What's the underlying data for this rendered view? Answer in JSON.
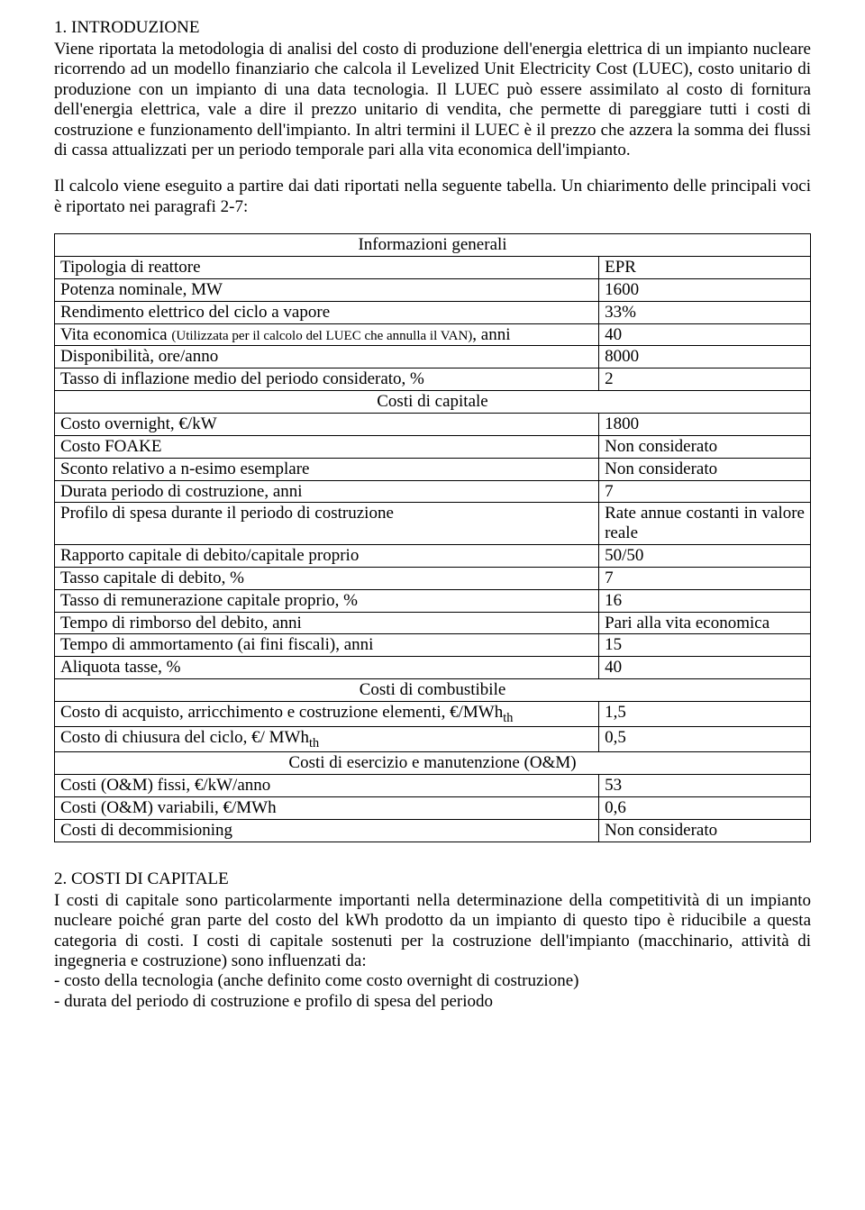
{
  "section1": {
    "heading": "1. INTRODUZIONE",
    "para1": "Viene riportata la metodologia di analisi del costo di produzione dell'energia elettrica di un impianto nucleare ricorrendo ad un modello finanziario che calcola il Levelized Unit Electricity Cost (LUEC), costo unitario di produzione con un impianto di una data tecnologia. Il LUEC può essere assimilato al costo di fornitura dell'energia elettrica, vale a dire il prezzo unitario di vendita, che permette di pareggiare tutti i costi di costruzione e funzionamento dell'impianto. In altri termini il LUEC è il prezzo che azzera la somma dei flussi di cassa attualizzati per un periodo temporale pari alla vita economica dell'impianto.",
    "para2": "Il calcolo viene eseguito a partire dai dati riportati nella seguente tabella. Un chiarimento delle principali voci è riportato nei paragrafi 2-7:"
  },
  "table": {
    "headers": {
      "general": "Informazioni generali",
      "capital": "Costi di capitale",
      "fuel": "Costi di combustibile",
      "om": "Costi di esercizio e manutenzione (O&M)"
    },
    "rows": {
      "r1": {
        "label": "Tipologia di reattore",
        "value": "EPR"
      },
      "r2": {
        "label": "Potenza nominale, MW",
        "value": "1600"
      },
      "r3": {
        "label": "Rendimento elettrico del ciclo a vapore",
        "value": "33%"
      },
      "r4": {
        "label_a": "Vita economica ",
        "label_b": "(Utilizzata per il calcolo del LUEC che annulla il VAN)",
        "label_c": ", anni",
        "value": "40"
      },
      "r5": {
        "label": "Disponibilità, ore/anno",
        "value": "8000"
      },
      "r6": {
        "label": "Tasso di inflazione medio del periodo considerato, %",
        "value": "2"
      },
      "r7": {
        "label": "Costo overnight, €/kW",
        "value": "1800"
      },
      "r8": {
        "label": "Costo FOAKE",
        "value": "Non considerato"
      },
      "r9": {
        "label": "Sconto relativo a n-esimo esemplare",
        "value": "Non considerato"
      },
      "r10": {
        "label": "Durata periodo di costruzione, anni",
        "value": "7"
      },
      "r11": {
        "label": "Profilo di spesa durante il periodo di costruzione",
        "value": "Rate annue costanti in valore reale"
      },
      "r12": {
        "label": "Rapporto capitale di debito/capitale proprio",
        "value": "50/50"
      },
      "r13": {
        "label": "Tasso capitale di debito, %",
        "value": "7"
      },
      "r14": {
        "label": "Tasso di remunerazione capitale proprio, %",
        "value": "16"
      },
      "r15": {
        "label": "Tempo di rimborso del debito, anni",
        "value": "Pari alla vita economica"
      },
      "r16": {
        "label": "Tempo di ammortamento (ai fini fiscali), anni",
        "value": "15"
      },
      "r17": {
        "label": "Aliquota tasse, %",
        "value": "40"
      },
      "r18": {
        "label_a": "Costo di acquisto, arricchimento e costruzione elementi, €/MWh",
        "label_b": "th",
        "value": "1,5"
      },
      "r19": {
        "label_a": "Costo di chiusura del ciclo, €/ MWh",
        "label_b": "th",
        "value": "0,5"
      },
      "r20": {
        "label": "Costi (O&M) fissi, €/kW/anno",
        "value": "53"
      },
      "r21": {
        "label": "Costi (O&M) variabili, €/MWh",
        "value": "0,6"
      },
      "r22": {
        "label": "Costi di decommisioning",
        "value": "Non considerato"
      }
    }
  },
  "section2": {
    "heading": "2. COSTI DI CAPITALE",
    "para1": "I costi di capitale sono particolarmente importanti nella determinazione della competitività di un impianto nucleare poiché gran parte del costo del kWh prodotto da un impianto di questo tipo è riducibile a questa categoria di costi. I costi di capitale sostenuti per la costruzione dell'impianto (macchinario, attività di ingegneria e costruzione) sono influenzati da:",
    "bullet1": "- costo della tecnologia (anche definito come costo overnight di costruzione)",
    "bullet2": "- durata del periodo di costruzione e profilo di spesa del periodo"
  }
}
